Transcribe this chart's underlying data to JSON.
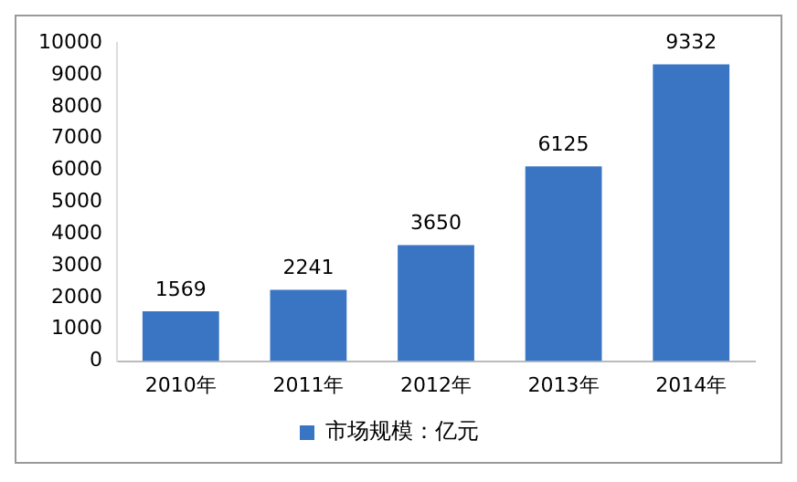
{
  "chart_data": {
    "type": "bar",
    "categories": [
      "2010年",
      "2011年",
      "2012年",
      "2013年",
      "2014年"
    ],
    "series": [
      {
        "name": "市场规模：亿元",
        "color": "#3a75c4",
        "values": [
          1569,
          2241,
          3650,
          6125,
          9332
        ]
      }
    ],
    "ylim": [
      0,
      10000
    ],
    "yticks": [
      0,
      1000,
      2000,
      3000,
      4000,
      5000,
      6000,
      7000,
      8000,
      9000,
      10000
    ],
    "grid": false,
    "legend": "bottom",
    "data_labels": true
  }
}
